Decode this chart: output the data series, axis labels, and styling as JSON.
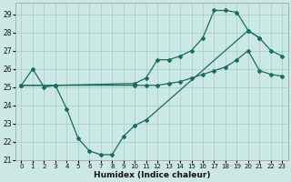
{
  "xlabel": "Humidex (Indice chaleur)",
  "bg_color": "#cce8e4",
  "grid_color": "#aacfcb",
  "line_color": "#1a6b62",
  "xlim": [
    -0.5,
    23.5
  ],
  "ylim": [
    21.0,
    29.6
  ],
  "yticks": [
    21,
    22,
    23,
    24,
    25,
    26,
    27,
    28,
    29
  ],
  "xticks": [
    0,
    1,
    2,
    3,
    4,
    5,
    6,
    7,
    8,
    9,
    10,
    11,
    12,
    13,
    14,
    15,
    16,
    17,
    18,
    19,
    20,
    21,
    22,
    23
  ],
  "line_dip_x": [
    0,
    1,
    2,
    3,
    4,
    5,
    6,
    7,
    8,
    9,
    10,
    11,
    20,
    21
  ],
  "line_dip_y": [
    25.1,
    26.0,
    25.0,
    25.1,
    23.8,
    22.2,
    21.5,
    21.3,
    21.3,
    22.3,
    22.9,
    23.2,
    28.1,
    27.7
  ],
  "line_rise_x": [
    0,
    3,
    10,
    11,
    12,
    13,
    14,
    15,
    16,
    17,
    18,
    19,
    20,
    21,
    22,
    23
  ],
  "line_rise_y": [
    25.1,
    25.1,
    25.2,
    25.5,
    26.5,
    26.5,
    26.7,
    27.0,
    27.7,
    29.2,
    29.2,
    29.1,
    28.1,
    27.7,
    27.0,
    26.7
  ],
  "line_flat_x": [
    0,
    3,
    10,
    11,
    12,
    13,
    14,
    15,
    16,
    17,
    18,
    19,
    20,
    21,
    22,
    23
  ],
  "line_flat_y": [
    25.1,
    25.1,
    25.1,
    25.1,
    25.1,
    25.2,
    25.3,
    25.5,
    25.7,
    25.9,
    26.1,
    26.5,
    27.0,
    25.9,
    25.7,
    25.6
  ]
}
